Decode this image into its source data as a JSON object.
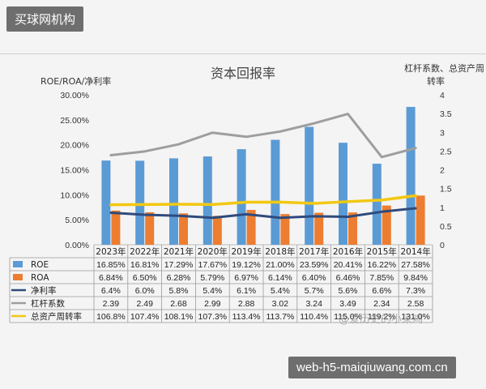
{
  "watermarks": {
    "top": "买球网机构",
    "bottom": "web-h5-maiqiuwang.com.cn",
    "overlay": "@爱历史的小呆鸡"
  },
  "chart_data": {
    "type": "bar",
    "title": "资本回报率",
    "left_axis_label": "ROE/ROA/净利率",
    "right_axis_label_line1": "杠杆系数、总资产周",
    "right_axis_label_line2": "转率",
    "categories": [
      "2023年",
      "2022年",
      "2021年",
      "2020年",
      "2019年",
      "2018年",
      "2017年",
      "2016年",
      "2015年",
      "2014年"
    ],
    "left_axis": {
      "min": 0,
      "max": 30,
      "ticks": [
        "0.00%",
        "5.00%",
        "10.00%",
        "15.00%",
        "20.00%",
        "25.00%",
        "30.00%"
      ]
    },
    "right_axis": {
      "min": 0,
      "max": 4,
      "ticks": [
        "0",
        "0.5",
        "1",
        "1.5",
        "2",
        "2.5",
        "3",
        "3.5",
        "4"
      ]
    },
    "series": [
      {
        "name": "ROE",
        "kind": "bar",
        "axis": "left",
        "color": "#5b9bd5",
        "values": [
          16.85,
          16.81,
          17.29,
          17.67,
          19.12,
          21.0,
          23.59,
          20.41,
          16.22,
          27.58
        ],
        "labels": [
          "16.85%",
          "16.81%",
          "17.29%",
          "17.67%",
          "19.12%",
          "21.00%",
          "23.59%",
          "20.41%",
          "16.22%",
          "27.58%"
        ]
      },
      {
        "name": "ROA",
        "kind": "bar",
        "axis": "left",
        "color": "#ed7d31",
        "values": [
          6.84,
          6.5,
          6.28,
          5.79,
          6.97,
          6.14,
          6.4,
          6.46,
          7.85,
          9.84
        ],
        "labels": [
          "6.84%",
          "6.50%",
          "6.28%",
          "5.79%",
          "6.97%",
          "6.14%",
          "6.40%",
          "6.46%",
          "7.85%",
          "9.84%"
        ]
      },
      {
        "name": "净利率",
        "kind": "line",
        "axis": "left",
        "color": "#2f4a7c",
        "values": [
          6.4,
          6.0,
          5.8,
          5.4,
          6.1,
          5.4,
          5.7,
          5.6,
          6.6,
          7.3
        ],
        "labels": [
          "6.4%",
          "6.0%",
          "5.8%",
          "5.4%",
          "6.1%",
          "5.4%",
          "5.7%",
          "5.6%",
          "6.6%",
          "7.3%"
        ]
      },
      {
        "name": "杠杆系数",
        "kind": "line",
        "axis": "right",
        "color": "#9e9e9e",
        "values": [
          2.39,
          2.49,
          2.68,
          2.99,
          2.88,
          3.02,
          3.24,
          3.49,
          2.34,
          2.58
        ],
        "labels": [
          "2.39",
          "2.49",
          "2.68",
          "2.99",
          "2.88",
          "3.02",
          "3.24",
          "3.49",
          "2.34",
          "2.58"
        ]
      },
      {
        "name": "总资产周转率",
        "kind": "line",
        "axis": "right",
        "color": "#f2c811",
        "values": [
          1.068,
          1.074,
          1.081,
          1.073,
          1.134,
          1.137,
          1.104,
          1.15,
          1.192,
          1.31
        ],
        "labels": [
          "106.8%",
          "107.4%",
          "108.1%",
          "107.3%",
          "113.4%",
          "113.7%",
          "110.4%",
          "115.0%",
          "119.2%",
          "131.0%"
        ]
      }
    ],
    "grid": false,
    "legend": "data-table"
  }
}
